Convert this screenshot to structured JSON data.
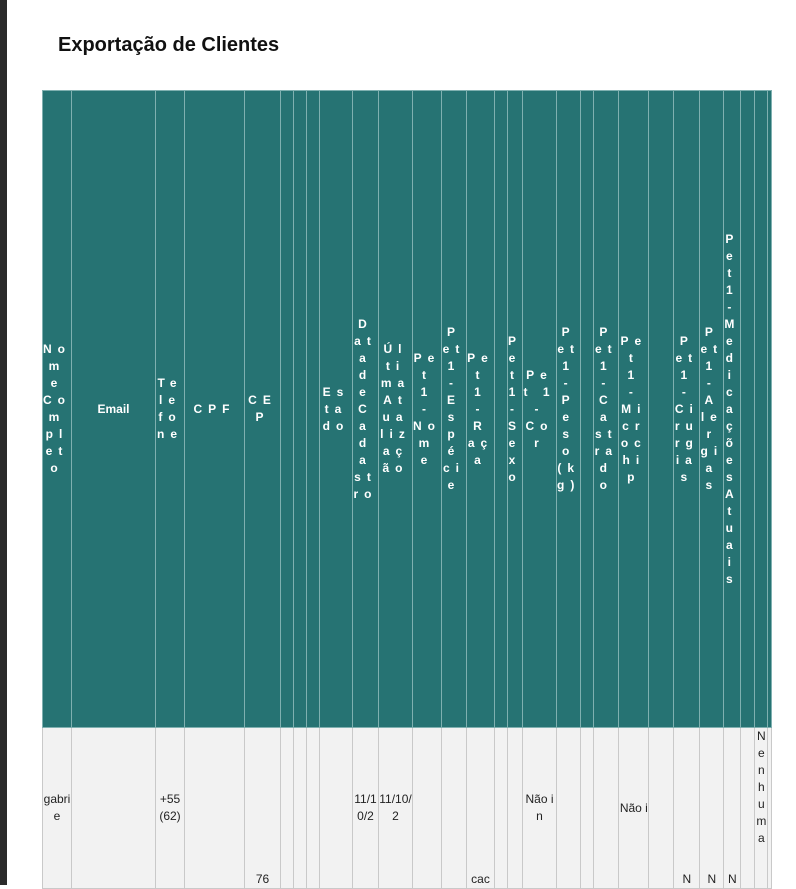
{
  "page": {
    "title": "Exportação de Clientes"
  },
  "table": {
    "headers": [
      "Nome Completo",
      "Email",
      "Telefone",
      "CPF",
      "CEP",
      "",
      "",
      "",
      "Estado",
      "Data de Cadastro",
      "Última Atualização",
      "Pet 1 - Nome",
      "Pet 1 - Espécie",
      "Pet 1 - Raça",
      "",
      "Pet 1 - Sexo",
      "Pet 1 - Cor",
      "Pet 1 - Peso (kg)",
      "",
      "Pet 1 - Castrado",
      "Pet 1 - Microchip",
      "",
      "Pet 1 - Cirurgias",
      "Pet 1 - Alergias",
      "Pet 1 - Medicações Atuais",
      "",
      "",
      ""
    ],
    "row": [
      "gabrie",
      "",
      "+55(62)",
      "",
      "76",
      "",
      "",
      "",
      "",
      "11/10/2",
      "11/10/2",
      "",
      "",
      "cac",
      "",
      "",
      "Não in",
      "",
      "",
      "",
      "Não i",
      "",
      "N",
      "N",
      "N",
      "",
      "Nenhuma",
      ""
    ]
  }
}
